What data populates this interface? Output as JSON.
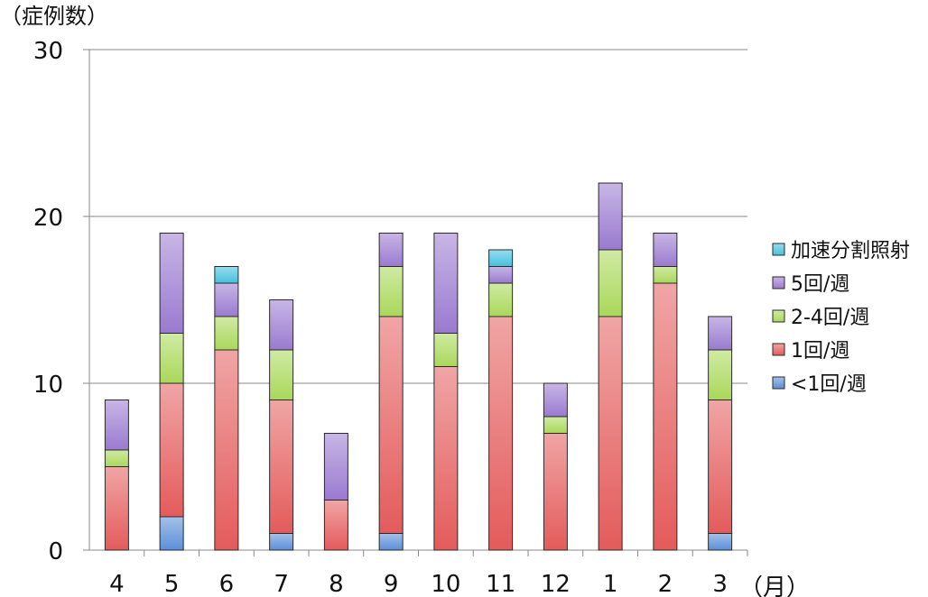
{
  "chart_data": {
    "type": "bar",
    "stacked": true,
    "title": "",
    "ylabel": "（症例数）",
    "xlabel": "（月）",
    "ylim": [
      0,
      30
    ],
    "yticks": [
      0,
      10,
      20,
      30
    ],
    "grid": true,
    "legend_position": "right",
    "categories": [
      "4",
      "5",
      "6",
      "7",
      "8",
      "9",
      "10",
      "11",
      "12",
      "1",
      "2",
      "3"
    ],
    "series": [
      {
        "name": "<1回/週",
        "color": "#5b8fd8",
        "values": [
          0,
          2,
          0,
          1,
          0,
          1,
          0,
          0,
          0,
          0,
          0,
          1
        ]
      },
      {
        "name": "1回/週",
        "color": "#e45b5b",
        "values": [
          5,
          8,
          12,
          8,
          3,
          13,
          11,
          14,
          7,
          14,
          16,
          8
        ]
      },
      {
        "name": "2-4回/週",
        "color": "#a9d85a",
        "values": [
          1,
          3,
          2,
          3,
          0,
          3,
          2,
          2,
          1,
          4,
          1,
          3
        ]
      },
      {
        "name": "5回/週",
        "color": "#9a7ad0",
        "values": [
          3,
          6,
          2,
          3,
          4,
          2,
          6,
          1,
          2,
          4,
          2,
          2
        ]
      },
      {
        "name": "加速分割照射",
        "color": "#45c0de",
        "values": [
          0,
          0,
          1,
          0,
          0,
          0,
          0,
          1,
          0,
          0,
          0,
          0
        ]
      }
    ]
  }
}
